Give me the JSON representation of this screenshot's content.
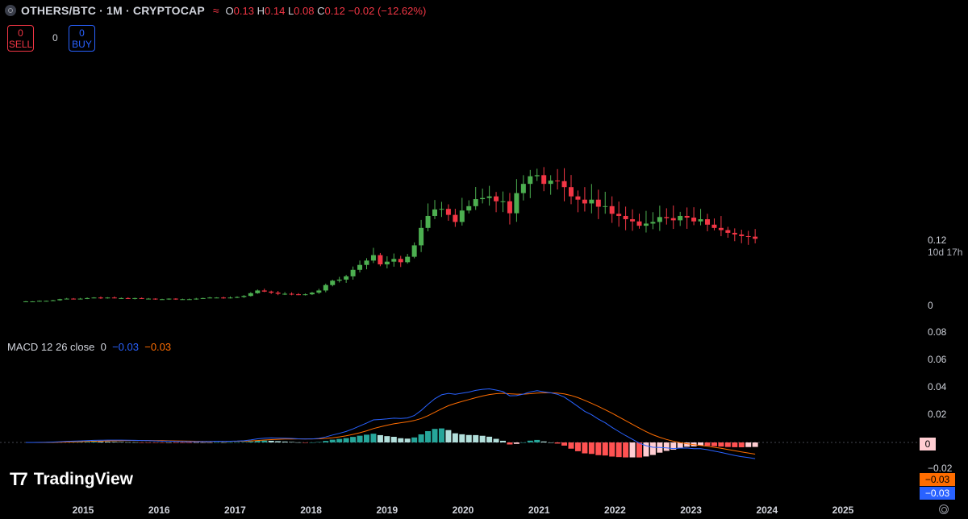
{
  "header": {
    "title": "OTHERS/BTC · 1M · CRYPTOCAP",
    "ohlc": [
      {
        "k": "O",
        "v": "0.13"
      },
      {
        "k": "H",
        "v": "0.14"
      },
      {
        "k": "L",
        "v": "0.08"
      },
      {
        "k": "C",
        "v": "0.12"
      }
    ],
    "change": "−0.02 (−12.62%)"
  },
  "trade": {
    "sell_count": "0",
    "sell_label": "SELL",
    "spread": "0",
    "buy_count": "0",
    "buy_label": "BUY"
  },
  "price_axis": {
    "last_price": "0.12",
    "countdown": "10d 17h",
    "zero_label": "0"
  },
  "macd": {
    "legend_name": "MACD 12 26 close",
    "hist_value": "0",
    "macd_value": "−0.03",
    "signal_value": "−0.03",
    "axis_ticks": [
      "0.08",
      "0.06",
      "0.04",
      "0.02",
      "−0.02"
    ],
    "tag_hist": "0",
    "tag_signal": "−0.03",
    "tag_macd": "−0.03"
  },
  "branding": {
    "logo_text": "TradingView"
  },
  "colors": {
    "up": "#26a69a",
    "up_candle": "#4caf50",
    "down": "#f23645",
    "macd_line": "#2962ff",
    "signal_line": "#ff6d00",
    "hist_up_strong": "#26a69a",
    "hist_up_weak": "#b2dfdb",
    "hist_down_strong": "#ff5252",
    "hist_down_weak": "#ffcdd2"
  },
  "chart_data": [
    {
      "type": "candlestick",
      "title": "OTHERS/BTC · 1M · CRYPTOCAP",
      "x_ticks": [
        "2015",
        "2016",
        "2017",
        "2018",
        "2019",
        "2020",
        "2021",
        "2022",
        "2023",
        "2024",
        "2025"
      ],
      "y_ticks_visible": [
        "0.12",
        "0"
      ],
      "close_approx": [
        0.006,
        0.006,
        0.007,
        0.007,
        0.008,
        0.01,
        0.011,
        0.01,
        0.011,
        0.012,
        0.013,
        0.012,
        0.013,
        0.012,
        0.012,
        0.011,
        0.012,
        0.011,
        0.011,
        0.01,
        0.01,
        0.011,
        0.01,
        0.01,
        0.01,
        0.011,
        0.012,
        0.013,
        0.013,
        0.012,
        0.013,
        0.014,
        0.016,
        0.021,
        0.026,
        0.024,
        0.022,
        0.02,
        0.02,
        0.019,
        0.018,
        0.019,
        0.022,
        0.026,
        0.036,
        0.044,
        0.046,
        0.052,
        0.064,
        0.073,
        0.081,
        0.091,
        0.074,
        0.079,
        0.084,
        0.078,
        0.088,
        0.109,
        0.141,
        0.163,
        0.175,
        0.176,
        0.165,
        0.152,
        0.173,
        0.181,
        0.194,
        0.196,
        0.199,
        0.19,
        0.19,
        0.168,
        0.205,
        0.222,
        0.236,
        0.238,
        0.222,
        0.228,
        0.227,
        0.216,
        0.199,
        0.193,
        0.186,
        0.193,
        0.18,
        0.181,
        0.167,
        0.163,
        0.157,
        0.153,
        0.145,
        0.149,
        0.152,
        0.161,
        0.159,
        0.155,
        0.163,
        0.16,
        0.153,
        0.157,
        0.147,
        0.141,
        0.137,
        0.132,
        0.129,
        0.126,
        0.125,
        0.121
      ]
    },
    {
      "type": "line+bar",
      "title": "MACD 12 26 close",
      "series": [
        {
          "name": "MACD",
          "color": "#2962ff"
        },
        {
          "name": "Signal",
          "color": "#ff6d00"
        },
        {
          "name": "Histogram"
        }
      ],
      "ylim": [
        -0.03,
        0.08
      ],
      "y_ticks": [
        0.08,
        0.06,
        0.04,
        0.02,
        -0.02
      ],
      "last_values": {
        "histogram": 0,
        "macd": -0.03,
        "signal": -0.03
      }
    }
  ]
}
